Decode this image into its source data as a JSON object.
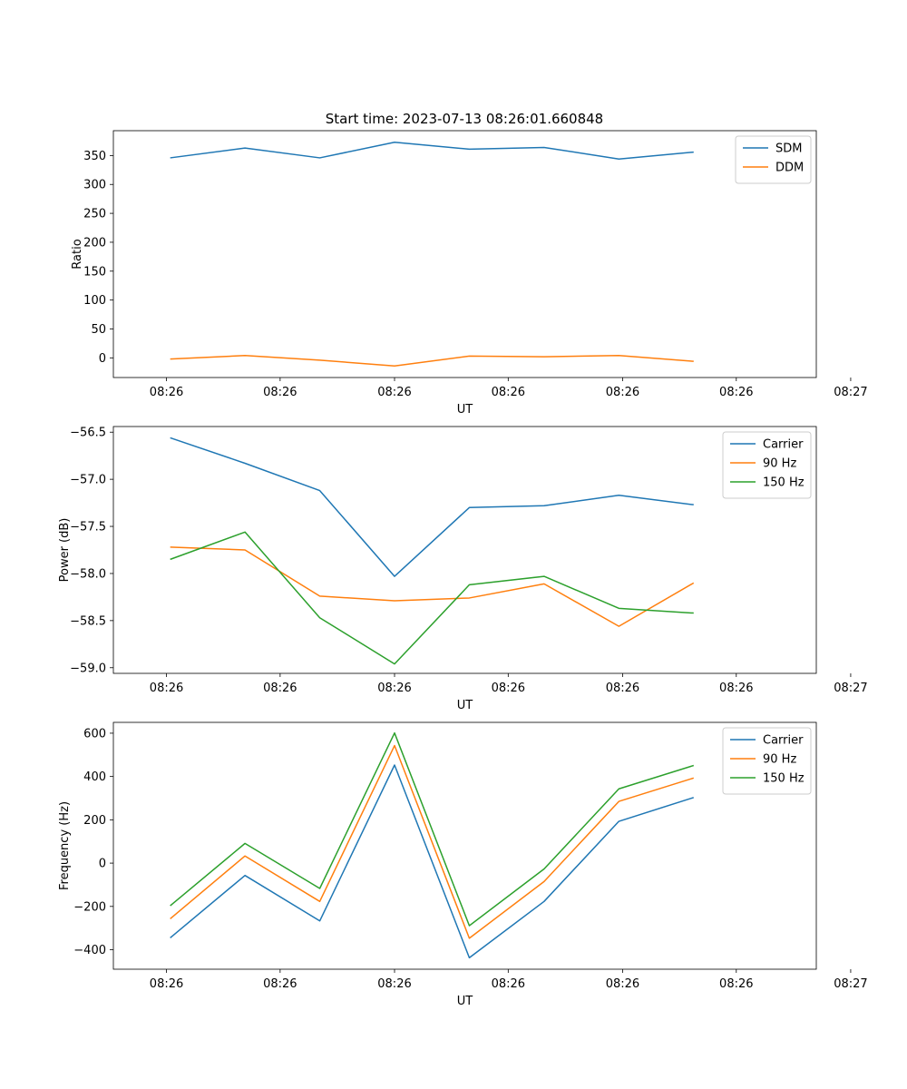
{
  "title": "Start time: 2023-07-13 08:26:01.660848",
  "x_tick_labels": [
    "08:26",
    "08:26",
    "08:26",
    "08:26",
    "08:26",
    "08:26",
    "08:27"
  ],
  "chart_data": [
    {
      "type": "line",
      "xlabel": "UT",
      "ylabel": "Ratio",
      "ylim": [
        -34,
        393
      ],
      "yticks": [
        0,
        50,
        100,
        150,
        200,
        250,
        300,
        350
      ],
      "x": [
        1,
        2,
        3,
        4,
        5,
        6,
        7,
        8
      ],
      "legend": "upper right",
      "series": [
        {
          "name": "SDM",
          "color": "#1f77b4",
          "values": [
            346,
            363,
            346,
            373,
            361,
            364,
            344,
            356
          ]
        },
        {
          "name": "DDM",
          "color": "#ff7f0e",
          "values": [
            -2,
            4,
            -4,
            -14,
            3,
            2,
            4,
            -6
          ]
        }
      ]
    },
    {
      "type": "line",
      "xlabel": "UT",
      "ylabel": "Power (dB)",
      "ylim": [
        -59.06,
        -56.44
      ],
      "yticks": [
        -59.0,
        -58.5,
        -58.0,
        -57.5,
        -57.0,
        -56.5
      ],
      "x": [
        1,
        2,
        3,
        4,
        5,
        6,
        7,
        8
      ],
      "legend": "upper right",
      "series": [
        {
          "name": "Carrier",
          "color": "#1f77b4",
          "values": [
            -56.56,
            -56.83,
            -57.12,
            -58.03,
            -57.3,
            -57.28,
            -57.17,
            -57.27
          ]
        },
        {
          "name": "90 Hz",
          "color": "#ff7f0e",
          "values": [
            -57.72,
            -57.75,
            -58.24,
            -58.29,
            -58.26,
            -58.11,
            -58.56,
            -58.1
          ]
        },
        {
          "name": "150 Hz",
          "color": "#2ca02c",
          "values": [
            -57.85,
            -57.56,
            -58.47,
            -58.96,
            -58.12,
            -58.03,
            -58.37,
            -58.42
          ]
        }
      ]
    },
    {
      "type": "line",
      "xlabel": "UT",
      "ylabel": "Frequency (Hz)",
      "ylim": [
        -490,
        650
      ],
      "yticks": [
        -400,
        -200,
        0,
        200,
        400,
        600
      ],
      "x": [
        1,
        2,
        3,
        4,
        5,
        6,
        7,
        8
      ],
      "legend": "upper right",
      "series": [
        {
          "name": "Carrier",
          "color": "#1f77b4",
          "values": [
            -345,
            -57,
            -267,
            453,
            -437,
            -177,
            193,
            303
          ]
        },
        {
          "name": "90 Hz",
          "color": "#ff7f0e",
          "values": [
            -257,
            33,
            -177,
            543,
            -347,
            -85,
            285,
            393
          ]
        },
        {
          "name": "150 Hz",
          "color": "#2ca02c",
          "values": [
            -197,
            91,
            -117,
            601,
            -289,
            -27,
            343,
            451
          ]
        }
      ]
    }
  ]
}
